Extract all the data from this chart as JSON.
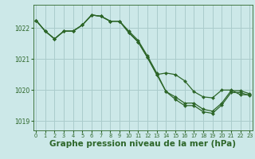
{
  "background_color": "#cce8e8",
  "grid_color": "#aacccc",
  "line_color": "#2d6629",
  "marker_color": "#2d6629",
  "xlabel": "Graphe pression niveau de la mer (hPa)",
  "xlabel_fontsize": 7.5,
  "ylim": [
    1018.7,
    1022.75
  ],
  "xlim": [
    -0.3,
    23.3
  ],
  "yticks": [
    1019,
    1020,
    1021,
    1022
  ],
  "xticks": [
    0,
    1,
    2,
    3,
    4,
    5,
    6,
    7,
    8,
    9,
    10,
    11,
    12,
    13,
    14,
    15,
    16,
    17,
    18,
    19,
    20,
    21,
    22,
    23
  ],
  "series1_x": [
    0,
    1,
    2,
    3,
    4,
    5,
    6,
    7,
    8,
    9,
    10,
    11,
    12,
    13,
    14,
    15,
    16,
    17,
    18,
    19,
    20,
    21,
    22,
    23
  ],
  "series1_y": [
    1022.25,
    1021.9,
    1021.65,
    1021.9,
    1021.9,
    1022.1,
    1022.42,
    1022.38,
    1022.22,
    1022.22,
    1021.9,
    1021.6,
    1021.1,
    1020.55,
    1019.95,
    1019.78,
    1019.58,
    1019.58,
    1019.38,
    1019.32,
    1019.58,
    1019.98,
    1019.98,
    1019.88
  ],
  "series2_x": [
    0,
    1,
    2,
    3,
    4,
    5,
    6,
    7,
    8,
    9,
    10,
    11,
    12,
    13,
    14,
    15,
    16,
    17,
    18,
    19,
    20,
    21,
    22,
    23
  ],
  "series2_y": [
    1022.25,
    1021.9,
    1021.65,
    1021.9,
    1021.9,
    1022.1,
    1022.42,
    1022.38,
    1022.22,
    1022.22,
    1021.85,
    1021.55,
    1021.05,
    1020.5,
    1020.55,
    1020.5,
    1020.3,
    1019.95,
    1019.78,
    1019.75,
    1020.0,
    1020.0,
    1019.85,
    1019.85
  ],
  "series3_x": [
    0,
    1,
    2,
    3,
    4,
    5,
    6,
    7,
    8,
    9,
    10,
    11,
    12,
    13,
    14,
    15,
    16,
    17,
    18,
    19,
    20,
    21,
    22,
    23
  ],
  "series3_y": [
    1022.25,
    1021.9,
    1021.65,
    1021.9,
    1021.9,
    1022.1,
    1022.42,
    1022.38,
    1022.22,
    1022.22,
    1021.85,
    1021.55,
    1021.05,
    1020.5,
    1019.95,
    1019.7,
    1019.5,
    1019.5,
    1019.3,
    1019.25,
    1019.52,
    1019.92,
    1019.92,
    1019.82
  ]
}
